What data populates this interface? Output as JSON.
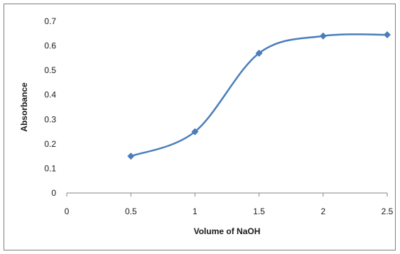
{
  "chart_data": {
    "type": "line",
    "title": "",
    "xlabel": "Volume of NaOH",
    "ylabel": "Absorbance",
    "xlim": [
      0,
      2.5
    ],
    "ylim": [
      0,
      0.7
    ],
    "x_ticks": [
      "0",
      "0.5",
      "1",
      "1.5",
      "2",
      "2.5"
    ],
    "y_ticks": [
      "0",
      "0.1",
      "0.2",
      "0.3",
      "0.4",
      "0.5",
      "0.6",
      "0.7"
    ],
    "grid": false,
    "legend": "none",
    "smooth": true,
    "marker": "diamond",
    "series": [
      {
        "color": "#4a7ebb",
        "points": [
          {
            "x": 0.5,
            "y": 0.15
          },
          {
            "x": 1.0,
            "y": 0.25
          },
          {
            "x": 1.5,
            "y": 0.57
          },
          {
            "x": 2.0,
            "y": 0.64
          },
          {
            "x": 2.5,
            "y": 0.645
          }
        ]
      }
    ]
  }
}
